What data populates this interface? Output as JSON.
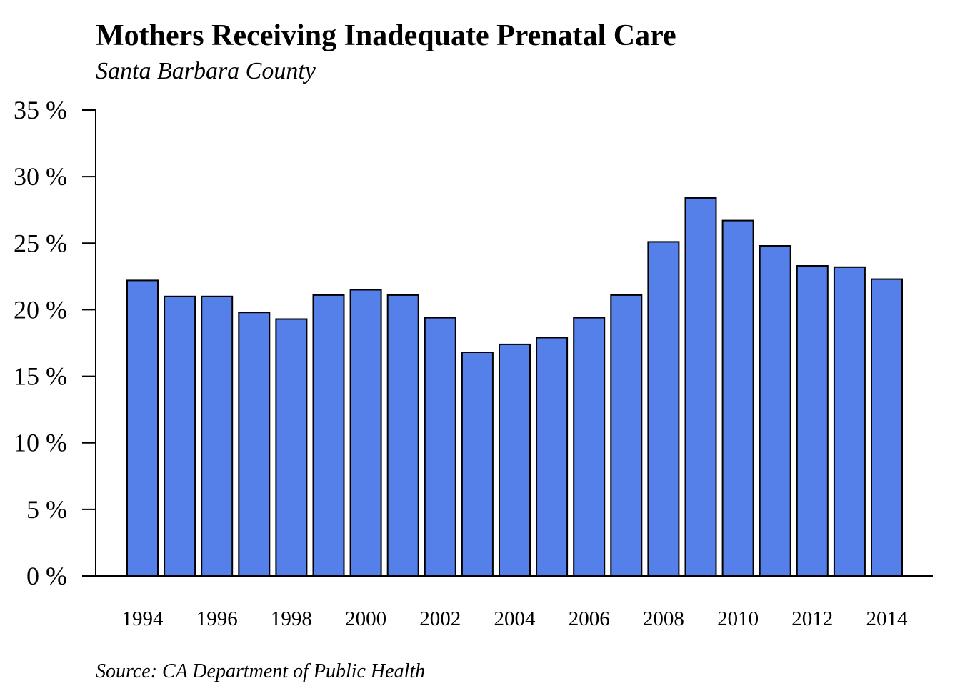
{
  "chart_data": {
    "type": "bar",
    "title": "Mothers Receiving Inadequate Prenatal Care",
    "subtitle": "Santa Barbara County",
    "source": "Source: CA Department of Public Health",
    "categories": [
      "1994",
      "1995",
      "1996",
      "1997",
      "1998",
      "1999",
      "2000",
      "2001",
      "2002",
      "2003",
      "2004",
      "2005",
      "2006",
      "2007",
      "2008",
      "2009",
      "2010",
      "2011",
      "2012",
      "2013",
      "2014"
    ],
    "values": [
      22.2,
      21.0,
      21.0,
      19.8,
      19.3,
      21.1,
      21.5,
      21.1,
      19.4,
      16.8,
      17.4,
      17.9,
      19.4,
      21.1,
      25.1,
      28.4,
      26.7,
      24.8,
      23.3,
      23.2,
      22.3
    ],
    "xtick_labels": [
      "1994",
      "1996",
      "1998",
      "2000",
      "2002",
      "2004",
      "2006",
      "2008",
      "2010",
      "2012",
      "2014"
    ],
    "ytick_values": [
      0,
      5,
      10,
      15,
      20,
      25,
      30,
      35
    ],
    "ytick_labels": [
      "0 %",
      "5 %",
      "10 %",
      "15 %",
      "20 %",
      "25 %",
      "30 %",
      "35 %"
    ],
    "ylim": [
      0,
      35
    ],
    "xlabel": "",
    "ylabel": "",
    "grid": false,
    "legend": "none",
    "bar_color": "#5580E9",
    "bar_edge_color": "#000000"
  }
}
